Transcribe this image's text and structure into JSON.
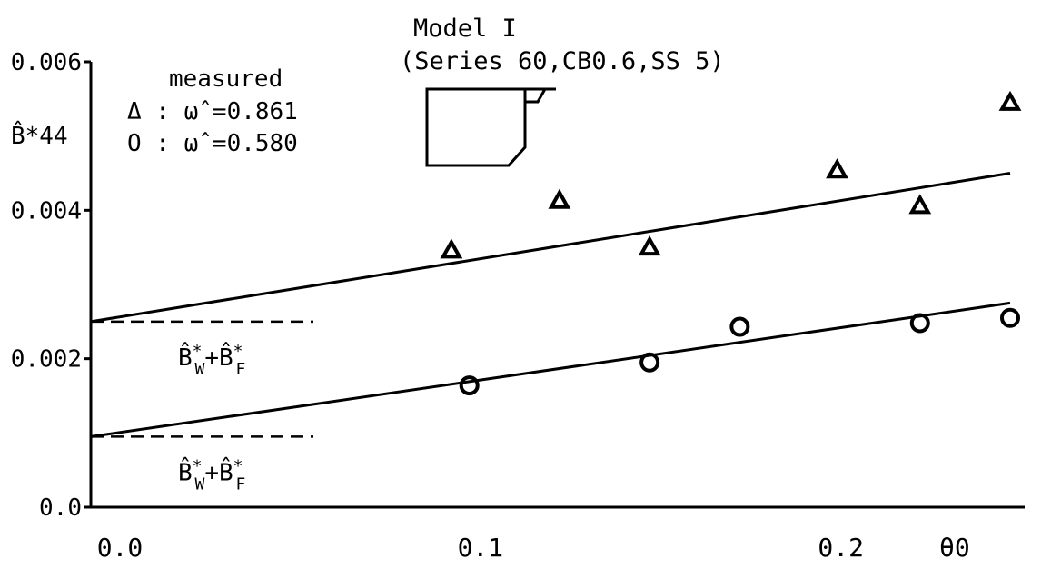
{
  "chart_data": {
    "type": "scatter",
    "title_line1": "Model I",
    "title_line2": "(Series 60,CB0.6,SS 5)",
    "ylabel": "B̂*44",
    "xlabel": "θ0",
    "xlim": [
      0.0,
      0.255
    ],
    "ylim": [
      0.0,
      0.006
    ],
    "x_ticks": [
      {
        "value": 0.0,
        "label": "0.0"
      },
      {
        "value": 0.1,
        "label": "0.1"
      },
      {
        "value": 0.2,
        "label": "0.2"
      }
    ],
    "y_ticks": [
      {
        "value": 0.0,
        "label": "0.0"
      },
      {
        "value": 0.002,
        "label": "0.002"
      },
      {
        "value": 0.004,
        "label": "0.004"
      },
      {
        "value": 0.006,
        "label": "0.006"
      }
    ],
    "legend": {
      "title": "measured",
      "entries": [
        {
          "marker": "triangle",
          "label": "Δ : ω̂ =0.861"
        },
        {
          "marker": "circle",
          "label": "O : ω̂ =0.580"
        }
      ]
    },
    "series": [
      {
        "name": "ω̂ =0.861",
        "marker": "triangle",
        "points": [
          {
            "x": 0.1,
            "y": 0.00346
          },
          {
            "x": 0.13,
            "y": 0.00413
          },
          {
            "x": 0.155,
            "y": 0.0035
          },
          {
            "x": 0.207,
            "y": 0.00454
          },
          {
            "x": 0.23,
            "y": 0.00406
          },
          {
            "x": 0.255,
            "y": 0.00545
          }
        ],
        "fit_line": {
          "x": [
            0.0,
            0.255
          ],
          "y": [
            0.0025,
            0.0045
          ]
        }
      },
      {
        "name": "ω̂ =0.580",
        "marker": "circle",
        "points": [
          {
            "x": 0.105,
            "y": 0.00164
          },
          {
            "x": 0.155,
            "y": 0.00195
          },
          {
            "x": 0.18,
            "y": 0.00243
          },
          {
            "x": 0.23,
            "y": 0.00248
          },
          {
            "x": 0.255,
            "y": 0.00255
          }
        ],
        "fit_line": {
          "x": [
            0.0,
            0.255
          ],
          "y": [
            0.00095,
            0.00275
          ]
        }
      }
    ],
    "reference_lines": [
      {
        "y": 0.0025,
        "label_main": "B̂",
        "label_sup1": "*",
        "label_sub1": "W",
        "label_plus": "+B̂",
        "label_sup2": "*",
        "label_sub2": "F"
      },
      {
        "y": 0.00095,
        "label_main": "B̂",
        "label_sup1": "*",
        "label_sub1": "W",
        "label_plus": "+B̂",
        "label_sup2": "*",
        "label_sub2": "F"
      }
    ]
  }
}
